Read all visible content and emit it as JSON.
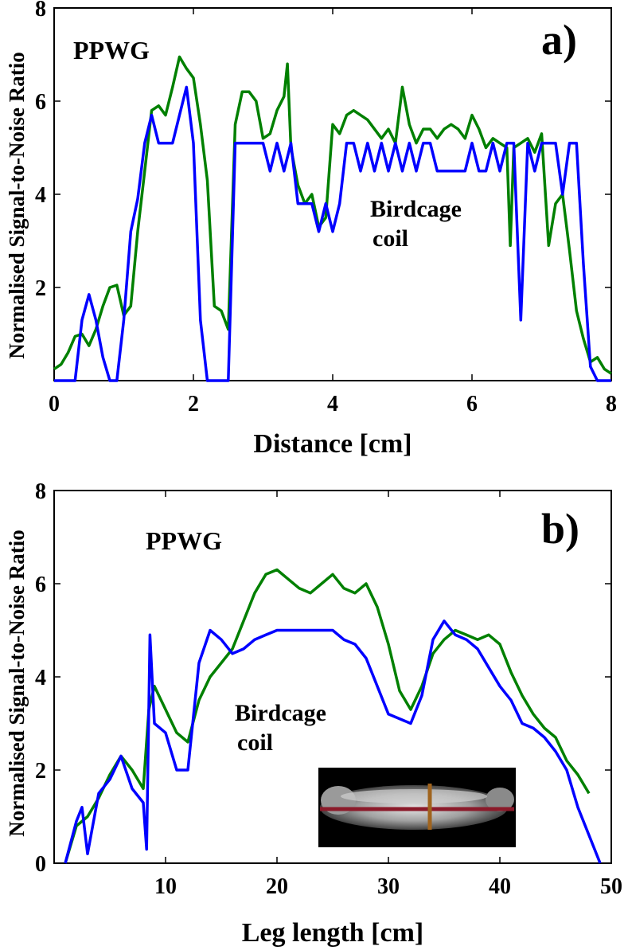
{
  "colors": {
    "ppwg": "#008000",
    "birdcage": "#0000ff",
    "axis": "#000000"
  },
  "chart_data": [
    {
      "type": "line",
      "panel_label": "a)",
      "xlabel": "Distance [cm]",
      "ylabel": "Normalised Signal-to-Noise Ratio",
      "xlim": [
        0,
        8
      ],
      "ylim": [
        0,
        8
      ],
      "xticks": [
        0,
        2,
        4,
        6,
        8
      ],
      "yticks": [
        2,
        4,
        6,
        8
      ],
      "annotations": {
        "ppwg": "PPWG",
        "birdcage_line1": "Birdcage",
        "birdcage_line2": "coil"
      },
      "series": [
        {
          "name": "PPWG",
          "color": "#008000",
          "x": [
            0.0,
            0.1,
            0.2,
            0.3,
            0.4,
            0.5,
            0.6,
            0.7,
            0.8,
            0.9,
            1.0,
            1.1,
            1.2,
            1.3,
            1.4,
            1.5,
            1.6,
            1.7,
            1.8,
            1.9,
            2.0,
            2.1,
            2.2,
            2.3,
            2.4,
            2.5,
            2.6,
            2.7,
            2.8,
            2.9,
            3.0,
            3.1,
            3.2,
            3.3,
            3.35,
            3.4,
            3.5,
            3.6,
            3.7,
            3.8,
            3.9,
            4.0,
            4.1,
            4.2,
            4.3,
            4.4,
            4.5,
            4.6,
            4.7,
            4.8,
            4.9,
            5.0,
            5.1,
            5.2,
            5.3,
            5.4,
            5.5,
            5.6,
            5.7,
            5.8,
            5.9,
            6.0,
            6.1,
            6.2,
            6.3,
            6.4,
            6.5,
            6.55,
            6.6,
            6.7,
            6.8,
            6.9,
            7.0,
            7.1,
            7.2,
            7.3,
            7.4,
            7.5,
            7.6,
            7.7,
            7.8,
            7.9,
            8.0
          ],
          "values": [
            0.25,
            0.35,
            0.6,
            0.95,
            1.0,
            0.75,
            1.1,
            1.6,
            2.0,
            2.05,
            1.4,
            1.6,
            3.2,
            4.5,
            5.8,
            5.9,
            5.7,
            6.3,
            6.95,
            6.7,
            6.5,
            5.5,
            4.3,
            1.6,
            1.5,
            1.1,
            5.5,
            6.2,
            6.2,
            6.0,
            5.2,
            5.3,
            5.8,
            6.1,
            6.8,
            5.0,
            4.2,
            3.8,
            4.0,
            3.3,
            3.5,
            5.5,
            5.3,
            5.7,
            5.8,
            5.7,
            5.6,
            5.4,
            5.2,
            5.4,
            5.1,
            6.3,
            5.5,
            5.1,
            5.4,
            5.4,
            5.2,
            5.4,
            5.5,
            5.4,
            5.2,
            5.7,
            5.4,
            5.0,
            5.2,
            5.1,
            5.0,
            2.9,
            5.0,
            5.1,
            5.2,
            4.9,
            5.3,
            2.9,
            3.8,
            4.0,
            2.8,
            1.5,
            0.9,
            0.4,
            0.5,
            0.25,
            0.15
          ]
        },
        {
          "name": "Birdcage coil",
          "color": "#0000ff",
          "x": [
            0.0,
            0.2,
            0.3,
            0.4,
            0.5,
            0.6,
            0.7,
            0.8,
            0.9,
            1.0,
            1.1,
            1.2,
            1.3,
            1.4,
            1.5,
            1.6,
            1.7,
            1.8,
            1.9,
            2.0,
            2.1,
            2.2,
            2.3,
            2.5,
            2.6,
            2.7,
            2.8,
            3.0,
            3.1,
            3.2,
            3.3,
            3.4,
            3.5,
            3.6,
            3.7,
            3.8,
            3.9,
            4.0,
            4.1,
            4.2,
            4.3,
            4.4,
            4.5,
            4.6,
            4.7,
            4.8,
            4.9,
            5.0,
            5.1,
            5.2,
            5.3,
            5.4,
            5.5,
            5.6,
            5.7,
            5.8,
            5.9,
            6.0,
            6.1,
            6.2,
            6.3,
            6.4,
            6.5,
            6.6,
            6.7,
            6.8,
            6.9,
            7.0,
            7.1,
            7.2,
            7.3,
            7.4,
            7.5,
            7.6,
            7.7,
            7.8,
            8.0
          ],
          "values": [
            0.0,
            0.0,
            0.0,
            1.3,
            1.85,
            1.3,
            0.5,
            0.0,
            0.0,
            1.3,
            3.2,
            3.9,
            5.1,
            5.7,
            5.1,
            5.1,
            5.1,
            5.7,
            6.3,
            5.1,
            1.3,
            0.0,
            0.0,
            0.0,
            5.1,
            5.1,
            5.1,
            5.1,
            4.5,
            5.1,
            4.5,
            5.1,
            3.8,
            3.8,
            3.8,
            3.2,
            3.8,
            3.2,
            3.8,
            5.1,
            5.1,
            4.5,
            5.1,
            4.5,
            5.1,
            4.5,
            5.1,
            4.5,
            5.1,
            4.5,
            5.1,
            5.1,
            4.5,
            4.5,
            4.5,
            4.5,
            4.5,
            5.1,
            4.5,
            4.5,
            5.1,
            4.5,
            5.1,
            5.1,
            1.3,
            5.1,
            4.5,
            5.1,
            5.1,
            5.1,
            4.0,
            5.1,
            5.1,
            2.5,
            0.3,
            0.0,
            0.0
          ]
        }
      ]
    },
    {
      "type": "line",
      "panel_label": "b)",
      "xlabel": "Leg length [cm]",
      "ylabel": "Normalised Signal-to-Noise Ratio",
      "xlim": [
        0,
        50
      ],
      "ylim": [
        0,
        8
      ],
      "xticks": [
        10,
        20,
        30,
        40,
        50
      ],
      "yticks": [
        0,
        2,
        4,
        6,
        8
      ],
      "annotations": {
        "ppwg": "PPWG",
        "birdcage_line1": "Birdcage",
        "birdcage_line2": "coil"
      },
      "inset": "MR image of leg with horizontal red profile line and vertical brown marker",
      "series": [
        {
          "name": "PPWG",
          "color": "#008000",
          "x": [
            1,
            2,
            3,
            4,
            5,
            6,
            7,
            8,
            8.5,
            9,
            10,
            11,
            12,
            13,
            14,
            15,
            16,
            17,
            18,
            19,
            20,
            21,
            22,
            23,
            24,
            25,
            26,
            27,
            28,
            29,
            30,
            31,
            32,
            33,
            34,
            35,
            36,
            37,
            38,
            39,
            40,
            41,
            42,
            43,
            44,
            45,
            46,
            47,
            48
          ],
          "values": [
            0.0,
            0.8,
            1.0,
            1.4,
            1.9,
            2.3,
            2.0,
            1.6,
            3.3,
            3.8,
            3.3,
            2.8,
            2.6,
            3.5,
            4.0,
            4.3,
            4.6,
            5.2,
            5.8,
            6.2,
            6.3,
            6.1,
            5.9,
            5.8,
            6.0,
            6.2,
            5.9,
            5.8,
            6.0,
            5.5,
            4.7,
            3.7,
            3.3,
            3.8,
            4.5,
            4.8,
            5.0,
            4.9,
            4.8,
            4.9,
            4.7,
            4.1,
            3.6,
            3.2,
            2.9,
            2.7,
            2.2,
            1.9,
            1.5
          ]
        },
        {
          "name": "Birdcage coil",
          "color": "#0000ff",
          "x": [
            1,
            2,
            2.5,
            3,
            4,
            5,
            6,
            7,
            8,
            8.3,
            8.6,
            9,
            10,
            11,
            12,
            13,
            14,
            15,
            16,
            17,
            18,
            19,
            20,
            21,
            22,
            23,
            24,
            25,
            26,
            27,
            28,
            29,
            30,
            31,
            32,
            33,
            34,
            35,
            36,
            37,
            38,
            39,
            40,
            41,
            42,
            43,
            44,
            45,
            46,
            47,
            48,
            49
          ],
          "values": [
            0.0,
            0.9,
            1.2,
            0.2,
            1.5,
            1.8,
            2.3,
            1.6,
            1.3,
            0.3,
            4.9,
            3.0,
            2.8,
            2.0,
            2.0,
            4.3,
            5.0,
            4.8,
            4.5,
            4.6,
            4.8,
            4.9,
            5.0,
            5.0,
            5.0,
            5.0,
            5.0,
            5.0,
            4.8,
            4.7,
            4.4,
            3.8,
            3.2,
            3.1,
            3.0,
            3.6,
            4.8,
            5.2,
            4.9,
            4.8,
            4.6,
            4.2,
            3.8,
            3.5,
            3.0,
            2.9,
            2.7,
            2.4,
            2.0,
            1.2,
            0.6,
            0.0
          ]
        }
      ]
    }
  ]
}
